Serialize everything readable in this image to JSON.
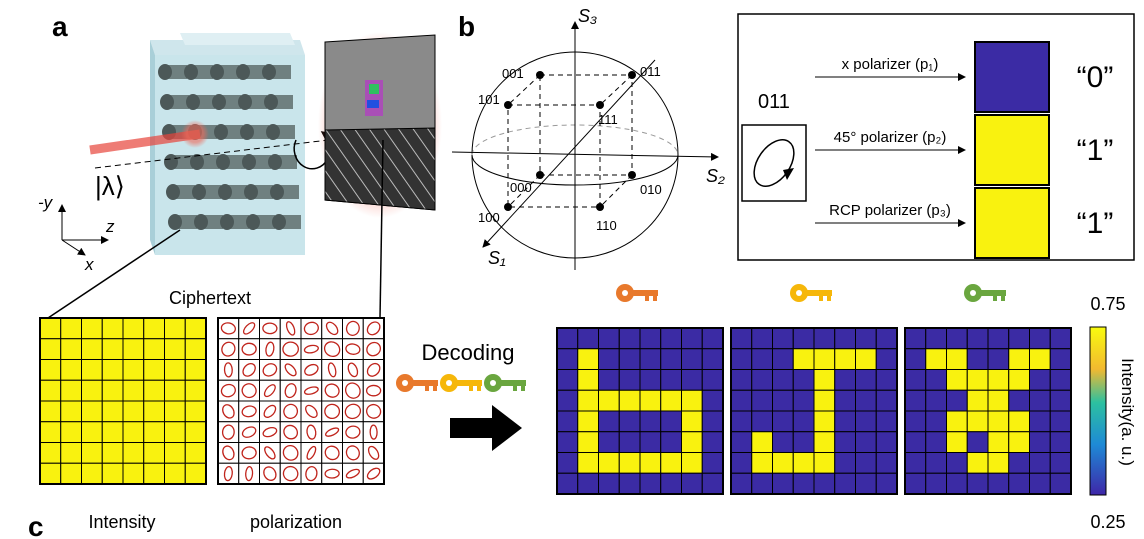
{
  "panel_labels": [
    "a",
    "b",
    "c"
  ],
  "panel_a": {
    "state": "|λ⟩",
    "axes": [
      "-y",
      "z",
      "x"
    ],
    "ciphertext_title": "Ciphertext",
    "captions": [
      "Intensity",
      "polarization"
    ],
    "decoding": "Decoding"
  },
  "panel_b": {
    "sphere_axes": [
      "S₃",
      "S₂",
      "S₁"
    ],
    "vertices": [
      "001",
      "011",
      "101",
      "111",
      "000",
      "010",
      "100",
      "110"
    ],
    "key": "011",
    "polarizers": [
      "x polarizer (p₁)",
      "45° polarizer (p₂)",
      "RCP polarizer (p₃)"
    ],
    "outputs": [
      "“0”",
      "“1”",
      "“1”"
    ]
  },
  "colorbar": {
    "max": 0.75,
    "min": 0.25,
    "label": "Intensity(a. u.)"
  }
}
